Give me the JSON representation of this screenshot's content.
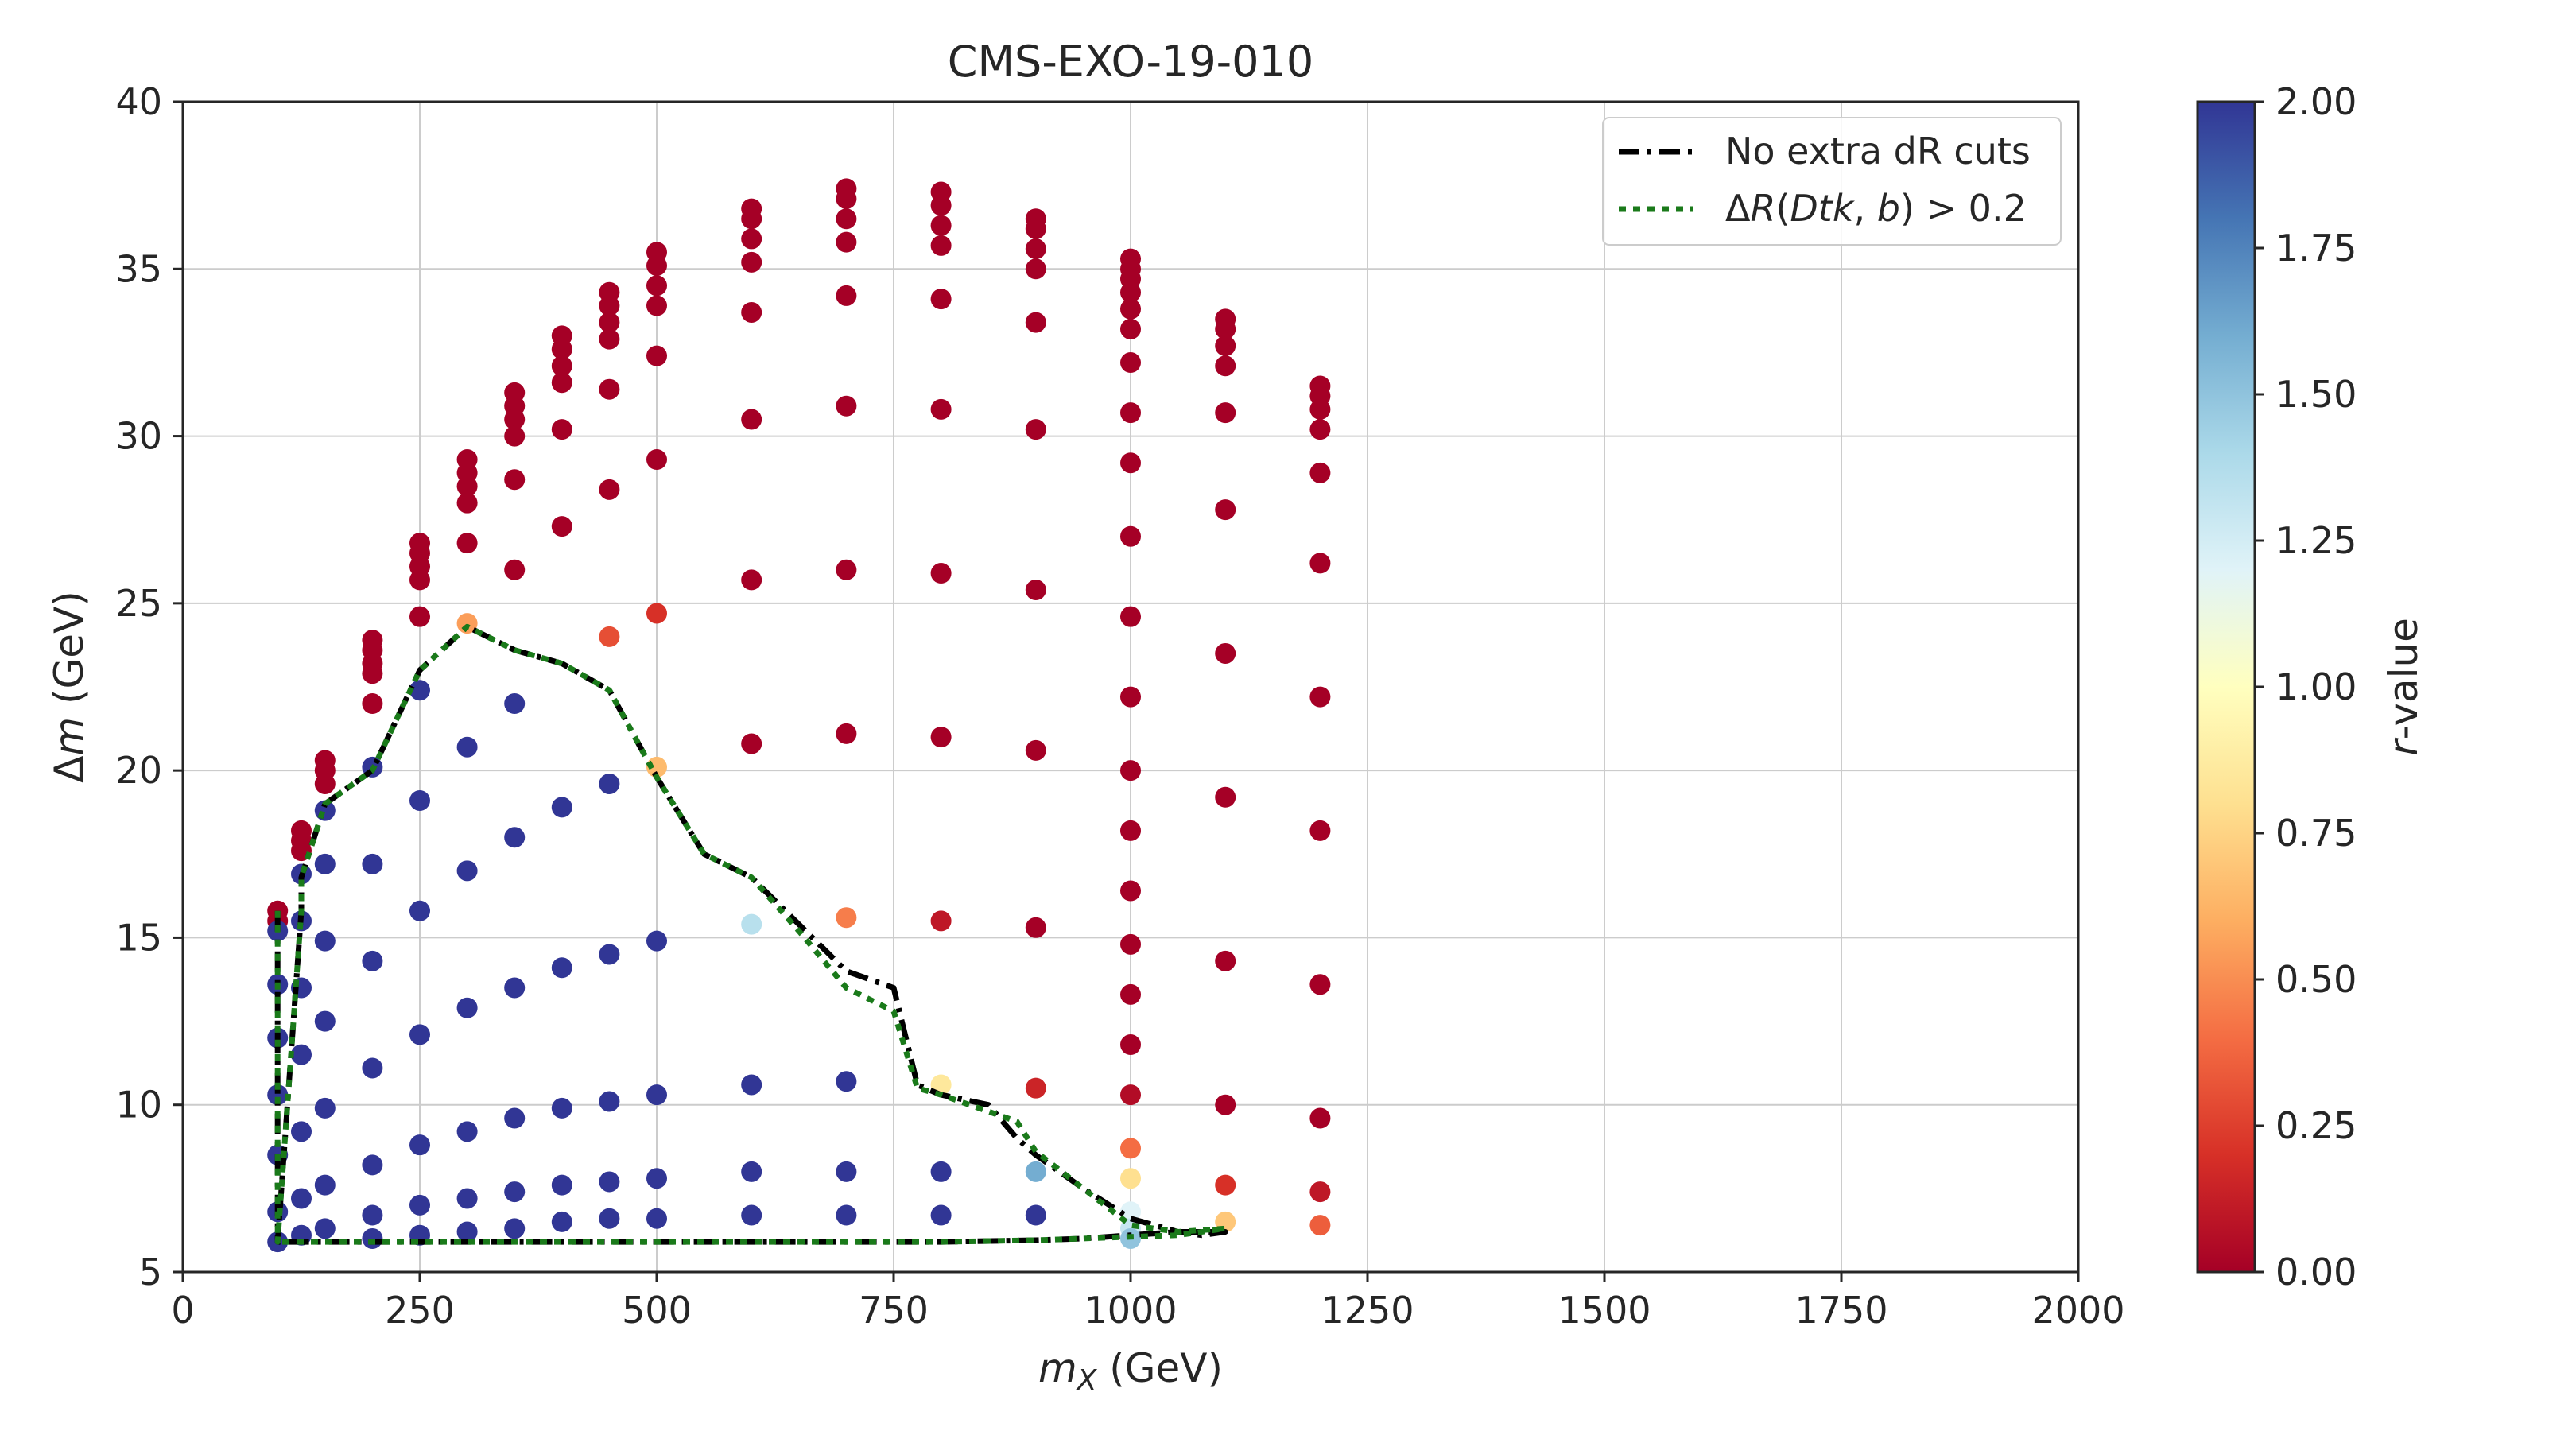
{
  "chart_data": {
    "type": "scatter",
    "title": "CMS-EXO-19-010",
    "xlabel_main": "m",
    "xlabel_sub": "X",
    "xlabel_unit": " (GeV)",
    "ylabel_prefix": "Δ",
    "ylabel_main": "m",
    "ylabel_unit": " (GeV)",
    "xlim": [
      0,
      2000
    ],
    "ylim": [
      5,
      40
    ],
    "xticks": [
      0,
      250,
      500,
      750,
      1000,
      1250,
      1500,
      1750,
      2000
    ],
    "yticks": [
      5,
      10,
      15,
      20,
      25,
      30,
      35,
      40
    ],
    "grid": true,
    "legend_position": "top-right",
    "colorbar": {
      "label_main": "r",
      "label_rest": "-value",
      "range": [
        0,
        2
      ],
      "ticks": [
        "0.00",
        "0.25",
        "0.50",
        "0.75",
        "1.00",
        "1.25",
        "1.50",
        "1.75",
        "2.00"
      ],
      "colormap": [
        "#a50026",
        "#d73027",
        "#f46d43",
        "#fdae61",
        "#fee090",
        "#ffffbf",
        "#e0f3f8",
        "#abd9e9",
        "#74add1",
        "#4575b4",
        "#313695"
      ]
    },
    "series": [
      {
        "name": "No extra dR cuts",
        "style": "dashdot",
        "color": "#000000",
        "x": [
          100,
          100,
          100,
          125,
          125,
          150,
          200,
          250,
          300,
          350,
          400,
          450,
          500,
          550,
          600,
          650,
          700,
          750,
          775,
          800,
          850,
          880,
          900,
          950,
          1000,
          1050,
          1075,
          1100,
          1050,
          1000,
          950,
          900,
          800,
          600,
          400,
          200,
          100
        ],
        "y": [
          15.8,
          10.0,
          5.9,
          15.8,
          16.8,
          19.0,
          20.0,
          23.0,
          24.3,
          23.6,
          23.2,
          22.4,
          19.8,
          17.5,
          16.8,
          15.4,
          14.0,
          13.5,
          10.6,
          10.3,
          10.0,
          9.0,
          8.5,
          7.5,
          6.6,
          6.2,
          6.1,
          6.2,
          6.2,
          6.1,
          6.0,
          5.95,
          5.9,
          5.9,
          5.9,
          5.9,
          5.9
        ]
      },
      {
        "name": "ΔR(Dtk,b) > 0.2",
        "style": "dotted",
        "color": "#1a7a1a",
        "x": [
          100,
          100,
          100,
          125,
          125,
          150,
          200,
          250,
          300,
          350,
          400,
          450,
          500,
          550,
          600,
          650,
          700,
          750,
          775,
          800,
          850,
          880,
          900,
          950,
          1000,
          1050,
          1100,
          1050,
          1000,
          950,
          900,
          800,
          600,
          400,
          200,
          100
        ],
        "y": [
          15.8,
          10.0,
          5.9,
          15.8,
          16.8,
          19.0,
          20.0,
          23.0,
          24.3,
          23.6,
          23.2,
          22.4,
          19.8,
          17.5,
          16.8,
          15.2,
          13.5,
          12.8,
          10.5,
          10.3,
          9.8,
          9.5,
          8.6,
          7.5,
          6.4,
          6.2,
          6.3,
          6.1,
          6.05,
          6.0,
          5.95,
          5.9,
          5.9,
          5.9,
          5.9,
          5.9
        ]
      }
    ],
    "points": [
      {
        "x": 100,
        "y": 15.8,
        "r": 0.0
      },
      {
        "x": 100,
        "y": 15.5,
        "r": 0.0
      },
      {
        "x": 100,
        "y": 15.2,
        "r": 2.0
      },
      {
        "x": 100,
        "y": 13.6,
        "r": 2.0
      },
      {
        "x": 100,
        "y": 12.0,
        "r": 2.0
      },
      {
        "x": 100,
        "y": 10.3,
        "r": 2.0
      },
      {
        "x": 100,
        "y": 8.5,
        "r": 2.0
      },
      {
        "x": 100,
        "y": 6.8,
        "r": 2.0
      },
      {
        "x": 100,
        "y": 5.9,
        "r": 2.0
      },
      {
        "x": 125,
        "y": 18.2,
        "r": 0.0
      },
      {
        "x": 125,
        "y": 17.9,
        "r": 0.0
      },
      {
        "x": 125,
        "y": 17.6,
        "r": 0.0
      },
      {
        "x": 125,
        "y": 16.9,
        "r": 2.0
      },
      {
        "x": 125,
        "y": 15.5,
        "r": 2.0
      },
      {
        "x": 125,
        "y": 13.5,
        "r": 2.0
      },
      {
        "x": 125,
        "y": 11.5,
        "r": 2.0
      },
      {
        "x": 125,
        "y": 9.2,
        "r": 2.0
      },
      {
        "x": 125,
        "y": 7.2,
        "r": 2.0
      },
      {
        "x": 125,
        "y": 6.1,
        "r": 2.0
      },
      {
        "x": 150,
        "y": 20.3,
        "r": 0.0
      },
      {
        "x": 150,
        "y": 20.0,
        "r": 0.0
      },
      {
        "x": 150,
        "y": 19.6,
        "r": 0.0
      },
      {
        "x": 150,
        "y": 18.8,
        "r": 2.0
      },
      {
        "x": 150,
        "y": 17.2,
        "r": 2.0
      },
      {
        "x": 150,
        "y": 14.9,
        "r": 2.0
      },
      {
        "x": 150,
        "y": 12.5,
        "r": 2.0
      },
      {
        "x": 150,
        "y": 9.9,
        "r": 2.0
      },
      {
        "x": 150,
        "y": 7.6,
        "r": 2.0
      },
      {
        "x": 150,
        "y": 6.3,
        "r": 2.0
      },
      {
        "x": 200,
        "y": 23.9,
        "r": 0.0
      },
      {
        "x": 200,
        "y": 23.6,
        "r": 0.0
      },
      {
        "x": 200,
        "y": 23.2,
        "r": 0.0
      },
      {
        "x": 200,
        "y": 22.9,
        "r": 0.0
      },
      {
        "x": 200,
        "y": 22.0,
        "r": 0.0
      },
      {
        "x": 200,
        "y": 20.1,
        "r": 2.0
      },
      {
        "x": 200,
        "y": 17.2,
        "r": 2.0
      },
      {
        "x": 200,
        "y": 14.3,
        "r": 2.0
      },
      {
        "x": 200,
        "y": 11.1,
        "r": 2.0
      },
      {
        "x": 200,
        "y": 8.2,
        "r": 2.0
      },
      {
        "x": 200,
        "y": 6.7,
        "r": 2.0
      },
      {
        "x": 200,
        "y": 6.0,
        "r": 2.0
      },
      {
        "x": 250,
        "y": 26.8,
        "r": 0.0
      },
      {
        "x": 250,
        "y": 26.5,
        "r": 0.0
      },
      {
        "x": 250,
        "y": 26.1,
        "r": 0.0
      },
      {
        "x": 250,
        "y": 25.7,
        "r": 0.0
      },
      {
        "x": 250,
        "y": 24.6,
        "r": 0.0
      },
      {
        "x": 250,
        "y": 22.4,
        "r": 2.0
      },
      {
        "x": 250,
        "y": 19.1,
        "r": 2.0
      },
      {
        "x": 250,
        "y": 15.8,
        "r": 2.0
      },
      {
        "x": 250,
        "y": 12.1,
        "r": 2.0
      },
      {
        "x": 250,
        "y": 8.8,
        "r": 2.0
      },
      {
        "x": 250,
        "y": 7.0,
        "r": 2.0
      },
      {
        "x": 250,
        "y": 6.1,
        "r": 2.0
      },
      {
        "x": 300,
        "y": 29.3,
        "r": 0.0
      },
      {
        "x": 300,
        "y": 28.9,
        "r": 0.0
      },
      {
        "x": 300,
        "y": 28.5,
        "r": 0.0
      },
      {
        "x": 300,
        "y": 28.0,
        "r": 0.0
      },
      {
        "x": 300,
        "y": 26.8,
        "r": 0.0
      },
      {
        "x": 300,
        "y": 24.4,
        "r": 0.55
      },
      {
        "x": 300,
        "y": 20.7,
        "r": 2.0
      },
      {
        "x": 300,
        "y": 17.0,
        "r": 2.0
      },
      {
        "x": 300,
        "y": 12.9,
        "r": 2.0
      },
      {
        "x": 300,
        "y": 9.2,
        "r": 2.0
      },
      {
        "x": 300,
        "y": 7.2,
        "r": 2.0
      },
      {
        "x": 300,
        "y": 6.2,
        "r": 2.0
      },
      {
        "x": 350,
        "y": 31.3,
        "r": 0.0
      },
      {
        "x": 350,
        "y": 30.9,
        "r": 0.0
      },
      {
        "x": 350,
        "y": 30.5,
        "r": 0.0
      },
      {
        "x": 350,
        "y": 30.0,
        "r": 0.0
      },
      {
        "x": 350,
        "y": 28.7,
        "r": 0.0
      },
      {
        "x": 350,
        "y": 26.0,
        "r": 0.0
      },
      {
        "x": 350,
        "y": 22.0,
        "r": 2.0
      },
      {
        "x": 350,
        "y": 18.0,
        "r": 2.0
      },
      {
        "x": 350,
        "y": 13.5,
        "r": 2.0
      },
      {
        "x": 350,
        "y": 9.6,
        "r": 2.0
      },
      {
        "x": 350,
        "y": 7.4,
        "r": 2.0
      },
      {
        "x": 350,
        "y": 6.3,
        "r": 2.0
      },
      {
        "x": 400,
        "y": 33.0,
        "r": 0.0
      },
      {
        "x": 400,
        "y": 32.6,
        "r": 0.0
      },
      {
        "x": 400,
        "y": 32.1,
        "r": 0.0
      },
      {
        "x": 400,
        "y": 31.6,
        "r": 0.0
      },
      {
        "x": 400,
        "y": 30.2,
        "r": 0.0
      },
      {
        "x": 400,
        "y": 27.3,
        "r": 0.0
      },
      {
        "x": 400,
        "y": 18.9,
        "r": 2.0
      },
      {
        "x": 400,
        "y": 14.1,
        "r": 2.0
      },
      {
        "x": 400,
        "y": 9.9,
        "r": 2.0
      },
      {
        "x": 400,
        "y": 7.6,
        "r": 2.0
      },
      {
        "x": 400,
        "y": 6.5,
        "r": 2.0
      },
      {
        "x": 450,
        "y": 34.3,
        "r": 0.0
      },
      {
        "x": 450,
        "y": 33.9,
        "r": 0.0
      },
      {
        "x": 450,
        "y": 33.4,
        "r": 0.0
      },
      {
        "x": 450,
        "y": 32.9,
        "r": 0.0
      },
      {
        "x": 450,
        "y": 31.4,
        "r": 0.0
      },
      {
        "x": 450,
        "y": 28.4,
        "r": 0.0
      },
      {
        "x": 450,
        "y": 24.0,
        "r": 0.3
      },
      {
        "x": 450,
        "y": 19.6,
        "r": 2.0
      },
      {
        "x": 450,
        "y": 14.5,
        "r": 2.0
      },
      {
        "x": 450,
        "y": 10.1,
        "r": 2.0
      },
      {
        "x": 450,
        "y": 7.7,
        "r": 2.0
      },
      {
        "x": 450,
        "y": 6.6,
        "r": 2.0
      },
      {
        "x": 500,
        "y": 35.5,
        "r": 0.0
      },
      {
        "x": 500,
        "y": 35.1,
        "r": 0.0
      },
      {
        "x": 500,
        "y": 34.5,
        "r": 0.0
      },
      {
        "x": 500,
        "y": 33.9,
        "r": 0.0
      },
      {
        "x": 500,
        "y": 32.4,
        "r": 0.0
      },
      {
        "x": 500,
        "y": 29.3,
        "r": 0.0
      },
      {
        "x": 500,
        "y": 24.7,
        "r": 0.2
      },
      {
        "x": 500,
        "y": 20.1,
        "r": 0.65
      },
      {
        "x": 500,
        "y": 14.9,
        "r": 2.0
      },
      {
        "x": 500,
        "y": 10.3,
        "r": 2.0
      },
      {
        "x": 500,
        "y": 7.8,
        "r": 2.0
      },
      {
        "x": 500,
        "y": 6.6,
        "r": 2.0
      },
      {
        "x": 600,
        "y": 36.8,
        "r": 0.0
      },
      {
        "x": 600,
        "y": 36.5,
        "r": 0.0
      },
      {
        "x": 600,
        "y": 35.9,
        "r": 0.0
      },
      {
        "x": 600,
        "y": 35.2,
        "r": 0.0
      },
      {
        "x": 600,
        "y": 33.7,
        "r": 0.0
      },
      {
        "x": 600,
        "y": 30.5,
        "r": 0.0
      },
      {
        "x": 600,
        "y": 25.7,
        "r": 0.0
      },
      {
        "x": 600,
        "y": 20.8,
        "r": 0.0
      },
      {
        "x": 600,
        "y": 15.4,
        "r": 1.35
      },
      {
        "x": 600,
        "y": 10.6,
        "r": 2.0
      },
      {
        "x": 600,
        "y": 8.0,
        "r": 2.0
      },
      {
        "x": 600,
        "y": 6.7,
        "r": 2.0
      },
      {
        "x": 700,
        "y": 37.4,
        "r": 0.0
      },
      {
        "x": 700,
        "y": 37.1,
        "r": 0.0
      },
      {
        "x": 700,
        "y": 36.5,
        "r": 0.0
      },
      {
        "x": 700,
        "y": 35.8,
        "r": 0.0
      },
      {
        "x": 700,
        "y": 34.2,
        "r": 0.0
      },
      {
        "x": 700,
        "y": 30.9,
        "r": 0.0
      },
      {
        "x": 700,
        "y": 26.0,
        "r": 0.0
      },
      {
        "x": 700,
        "y": 21.1,
        "r": 0.0
      },
      {
        "x": 700,
        "y": 15.6,
        "r": 0.45
      },
      {
        "x": 700,
        "y": 10.7,
        "r": 2.0
      },
      {
        "x": 700,
        "y": 8.0,
        "r": 2.0
      },
      {
        "x": 700,
        "y": 6.7,
        "r": 2.0
      },
      {
        "x": 800,
        "y": 37.3,
        "r": 0.0
      },
      {
        "x": 800,
        "y": 36.9,
        "r": 0.0
      },
      {
        "x": 800,
        "y": 36.3,
        "r": 0.0
      },
      {
        "x": 800,
        "y": 35.7,
        "r": 0.0
      },
      {
        "x": 800,
        "y": 34.1,
        "r": 0.0
      },
      {
        "x": 800,
        "y": 30.8,
        "r": 0.0
      },
      {
        "x": 800,
        "y": 25.9,
        "r": 0.0
      },
      {
        "x": 800,
        "y": 21.0,
        "r": 0.0
      },
      {
        "x": 800,
        "y": 15.5,
        "r": 0.1
      },
      {
        "x": 800,
        "y": 10.6,
        "r": 0.85
      },
      {
        "x": 800,
        "y": 8.0,
        "r": 2.0
      },
      {
        "x": 800,
        "y": 6.7,
        "r": 2.0
      },
      {
        "x": 900,
        "y": 36.5,
        "r": 0.0
      },
      {
        "x": 900,
        "y": 36.2,
        "r": 0.0
      },
      {
        "x": 900,
        "y": 35.6,
        "r": 0.0
      },
      {
        "x": 900,
        "y": 35.0,
        "r": 0.0
      },
      {
        "x": 900,
        "y": 33.4,
        "r": 0.0
      },
      {
        "x": 900,
        "y": 30.2,
        "r": 0.0
      },
      {
        "x": 900,
        "y": 25.4,
        "r": 0.0
      },
      {
        "x": 900,
        "y": 20.6,
        "r": 0.0
      },
      {
        "x": 900,
        "y": 15.3,
        "r": 0.0
      },
      {
        "x": 900,
        "y": 10.5,
        "r": 0.15
      },
      {
        "x": 900,
        "y": 8.0,
        "r": 1.6
      },
      {
        "x": 900,
        "y": 6.7,
        "r": 2.0
      },
      {
        "x": 1000,
        "y": 35.3,
        "r": 0.0
      },
      {
        "x": 1000,
        "y": 35.0,
        "r": 0.0
      },
      {
        "x": 1000,
        "y": 34.7,
        "r": 0.0
      },
      {
        "x": 1000,
        "y": 34.3,
        "r": 0.0
      },
      {
        "x": 1000,
        "y": 33.8,
        "r": 0.0
      },
      {
        "x": 1000,
        "y": 33.2,
        "r": 0.0
      },
      {
        "x": 1000,
        "y": 32.2,
        "r": 0.0
      },
      {
        "x": 1000,
        "y": 30.7,
        "r": 0.0
      },
      {
        "x": 1000,
        "y": 29.2,
        "r": 0.0
      },
      {
        "x": 1000,
        "y": 27.0,
        "r": 0.0
      },
      {
        "x": 1000,
        "y": 24.6,
        "r": 0.0
      },
      {
        "x": 1000,
        "y": 22.2,
        "r": 0.0
      },
      {
        "x": 1000,
        "y": 20.0,
        "r": 0.0
      },
      {
        "x": 1000,
        "y": 18.2,
        "r": 0.0
      },
      {
        "x": 1000,
        "y": 16.4,
        "r": 0.0
      },
      {
        "x": 1000,
        "y": 14.8,
        "r": 0.0
      },
      {
        "x": 1000,
        "y": 13.3,
        "r": 0.0
      },
      {
        "x": 1000,
        "y": 11.8,
        "r": 0.0
      },
      {
        "x": 1000,
        "y": 10.3,
        "r": 0.05
      },
      {
        "x": 1000,
        "y": 8.7,
        "r": 0.4
      },
      {
        "x": 1000,
        "y": 7.8,
        "r": 0.8
      },
      {
        "x": 1000,
        "y": 6.8,
        "r": 1.2
      },
      {
        "x": 1000,
        "y": 6.3,
        "r": 1.3
      },
      {
        "x": 1000,
        "y": 6.0,
        "r": 1.5
      },
      {
        "x": 1100,
        "y": 33.5,
        "r": 0.0
      },
      {
        "x": 1100,
        "y": 33.2,
        "r": 0.0
      },
      {
        "x": 1100,
        "y": 32.7,
        "r": 0.0
      },
      {
        "x": 1100,
        "y": 32.1,
        "r": 0.0
      },
      {
        "x": 1100,
        "y": 30.7,
        "r": 0.0
      },
      {
        "x": 1100,
        "y": 27.8,
        "r": 0.0
      },
      {
        "x": 1100,
        "y": 23.5,
        "r": 0.0
      },
      {
        "x": 1100,
        "y": 19.2,
        "r": 0.0
      },
      {
        "x": 1100,
        "y": 14.3,
        "r": 0.0
      },
      {
        "x": 1100,
        "y": 10.0,
        "r": 0.0
      },
      {
        "x": 1100,
        "y": 7.6,
        "r": 0.2
      },
      {
        "x": 1100,
        "y": 6.5,
        "r": 0.7
      },
      {
        "x": 1200,
        "y": 31.5,
        "r": 0.0
      },
      {
        "x": 1200,
        "y": 31.2,
        "r": 0.0
      },
      {
        "x": 1200,
        "y": 30.8,
        "r": 0.0
      },
      {
        "x": 1200,
        "y": 30.2,
        "r": 0.0
      },
      {
        "x": 1200,
        "y": 28.9,
        "r": 0.0
      },
      {
        "x": 1200,
        "y": 26.2,
        "r": 0.0
      },
      {
        "x": 1200,
        "y": 22.2,
        "r": 0.0
      },
      {
        "x": 1200,
        "y": 18.2,
        "r": 0.0
      },
      {
        "x": 1200,
        "y": 13.6,
        "r": 0.0
      },
      {
        "x": 1200,
        "y": 9.6,
        "r": 0.0
      },
      {
        "x": 1200,
        "y": 7.4,
        "r": 0.1
      },
      {
        "x": 1200,
        "y": 6.4,
        "r": 0.35
      }
    ]
  }
}
